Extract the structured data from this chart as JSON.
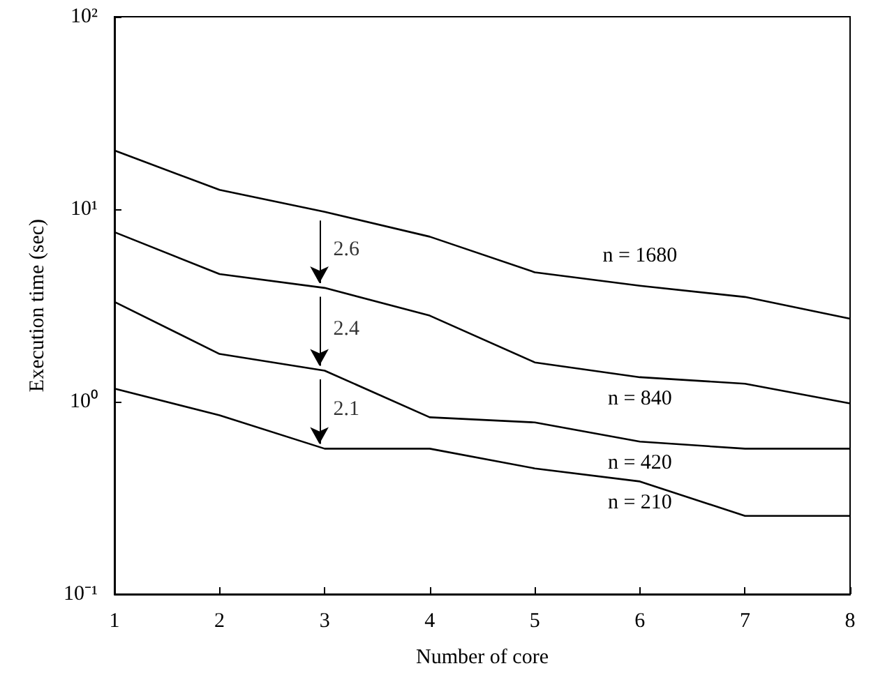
{
  "chart_data": {
    "type": "line",
    "xlabel": "Number of core",
    "ylabel": "Execution time (sec)",
    "x": [
      1,
      2,
      3,
      4,
      5,
      6,
      7,
      8
    ],
    "series": [
      {
        "name": "n = 1680",
        "color": "#000000",
        "values": [
          20.2,
          12.6,
          9.7,
          7.2,
          4.7,
          4.0,
          3.5,
          2.7
        ]
      },
      {
        "name": "n = 840",
        "color": "#000000",
        "values": [
          7.6,
          4.6,
          3.9,
          2.8,
          1.6,
          1.34,
          1.24,
          0.98
        ]
      },
      {
        "name": "n = 420",
        "color": "#000000",
        "values": [
          3.3,
          1.77,
          1.45,
          0.83,
          0.78,
          0.62,
          0.57,
          0.57
        ]
      },
      {
        "name": "n = 210",
        "color": "#000000",
        "values": [
          1.17,
          0.85,
          0.57,
          0.57,
          0.45,
          0.385,
          0.255,
          0.255
        ]
      }
    ],
    "annotations": [
      "2.6",
      "2.4",
      "2.1"
    ],
    "log": "y",
    "xlim": [
      1,
      8
    ],
    "xticks": [
      1,
      2,
      3,
      4,
      5,
      6,
      7,
      8
    ],
    "ylim": [
      0.1,
      100
    ],
    "yticks": [
      {
        "value": 0.1,
        "label": "10⁻¹"
      },
      {
        "value": 1,
        "label": "10⁰"
      },
      {
        "value": 10,
        "label": "10¹"
      },
      {
        "value": 100,
        "label": "10²"
      }
    ],
    "grid": false,
    "legend": false,
    "marker": "none",
    "line_style": "solid"
  }
}
